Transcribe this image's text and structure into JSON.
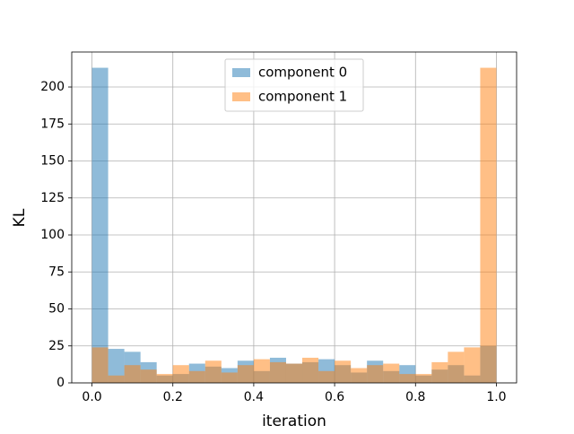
{
  "chart_data": {
    "type": "histogram",
    "xlabel": "iteration",
    "ylabel": "KL",
    "bins": [
      0,
      0.04,
      0.08,
      0.12,
      0.16,
      0.2,
      0.24,
      0.28,
      0.32,
      0.36,
      0.4,
      0.44,
      0.48,
      0.52,
      0.56,
      0.6,
      0.64,
      0.68,
      0.72,
      0.76,
      0.8,
      0.84,
      0.88,
      0.92,
      0.96,
      1.0
    ],
    "series": [
      {
        "name": "component 0",
        "color": "#1f77b4",
        "values": [
          213,
          23,
          21,
          14,
          5,
          6,
          13,
          11,
          10,
          15,
          8,
          17,
          13,
          14,
          16,
          12,
          7,
          15,
          8,
          12,
          5,
          9,
          12,
          5,
          25
        ]
      },
      {
        "name": "component 1",
        "color": "#ff7f0e",
        "values": [
          24,
          5,
          12,
          9,
          6,
          12,
          8,
          15,
          7,
          12,
          16,
          14,
          13,
          17,
          8,
          15,
          10,
          12,
          13,
          6,
          6,
          14,
          21,
          24,
          213
        ]
      }
    ],
    "xlim": [
      -0.05,
      1.05
    ],
    "ylim": [
      0,
      223.65
    ],
    "xticks": [
      {
        "value": 0,
        "label": "0.0"
      },
      {
        "value": 0.2,
        "label": "0.2"
      },
      {
        "value": 0.4,
        "label": "0.4"
      },
      {
        "value": 0.6,
        "label": "0.6"
      },
      {
        "value": 0.8,
        "label": "0.8"
      },
      {
        "value": 1.0,
        "label": "1.0"
      }
    ],
    "yticks": [
      0,
      25,
      50,
      75,
      100,
      125,
      150,
      175,
      200
    ],
    "grid": true,
    "legend": "upper center",
    "opacity": 0.5
  }
}
